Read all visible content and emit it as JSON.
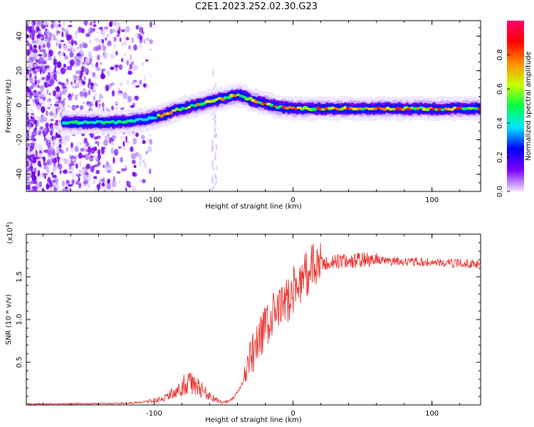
{
  "title": "C2E1.2023.252.02.30.G23",
  "chart_data": [
    {
      "type": "heatmap",
      "xlabel": "Height of straight line (km)",
      "ylabel": "Frequency (Hz)",
      "xlim": [
        -192,
        135
      ],
      "ylim": [
        -50,
        49
      ],
      "x_ticks": [
        -100,
        0,
        100
      ],
      "x_tick_labels": [
        "-100",
        "0",
        "100"
      ],
      "y_ticks": [
        -40,
        -20,
        0,
        20,
        40
      ],
      "y_tick_labels": [
        "-40",
        "-20",
        "0",
        "20",
        "40"
      ],
      "ridge": {
        "x": [
          -165,
          -150,
          -130,
          -115,
          -105,
          -95,
          -85,
          -75,
          -65,
          -55,
          -45,
          -38,
          -30,
          -20,
          -10,
          0,
          20,
          40,
          60,
          80,
          100,
          120,
          135
        ],
        "frequency": [
          -10,
          -10,
          -10,
          -9,
          -8,
          -6,
          -3,
          -1,
          1,
          3,
          5,
          6,
          3,
          1,
          -1,
          -2,
          -2,
          -2,
          -2,
          -2,
          -2,
          -2,
          -2
        ]
      },
      "colorbar": {
        "label": "Normalized spectral amplitude",
        "range": [
          0,
          1
        ],
        "ticks": [
          0,
          0.2,
          0.4,
          0.6,
          0.8
        ],
        "tick_labels": [
          "0.0",
          "0.2",
          "0.4",
          "0.6",
          "0.8"
        ],
        "colormap": [
          "#f0e6ff",
          "#7a00ff",
          "#0000ff",
          "#00e5ff",
          "#00ff44",
          "#c8ff00",
          "#ff8c00",
          "#ff0000",
          "#ff006a"
        ]
      }
    },
    {
      "type": "line",
      "xlabel": "Height of straight line (km)",
      "ylabel": "SNR (10 * v/v)",
      "multiplier_label": "(x10",
      "multiplier_exp": "4",
      "xlim": [
        -192,
        135
      ],
      "ylim": [
        0,
        2.0
      ],
      "x_ticks": [
        -100,
        0,
        100
      ],
      "x_tick_labels": [
        "-100",
        "0",
        "100"
      ],
      "y_ticks": [
        0.5,
        1.0,
        1.5
      ],
      "y_tick_labels": [
        "0.5",
        "1.0",
        "1.5"
      ],
      "color": "#e8302c",
      "series": [
        {
          "x": [
            -192,
            -150,
            -120,
            -105,
            -95,
            -88,
            -82,
            -78,
            -74,
            -70,
            -66,
            -62,
            -58,
            -54,
            -50,
            -46,
            -42,
            -38,
            -34,
            -30,
            -26,
            -22,
            -18,
            -14,
            -10,
            -6,
            -2,
            2,
            6,
            10,
            14,
            18,
            22,
            26,
            30,
            40,
            50,
            60,
            70,
            80,
            90,
            100,
            110,
            120,
            135
          ],
          "y": [
            0.01,
            0.015,
            0.02,
            0.04,
            0.07,
            0.12,
            0.17,
            0.24,
            0.25,
            0.22,
            0.18,
            0.13,
            0.08,
            0.05,
            0.03,
            0.04,
            0.1,
            0.2,
            0.35,
            0.55,
            0.7,
            0.85,
            0.95,
            1.05,
            1.1,
            1.2,
            1.28,
            1.38,
            1.48,
            1.55,
            1.6,
            1.64,
            1.65,
            1.66,
            1.68,
            1.68,
            1.7,
            1.7,
            1.68,
            1.68,
            1.67,
            1.67,
            1.66,
            1.66,
            1.65
          ]
        }
      ]
    }
  ]
}
